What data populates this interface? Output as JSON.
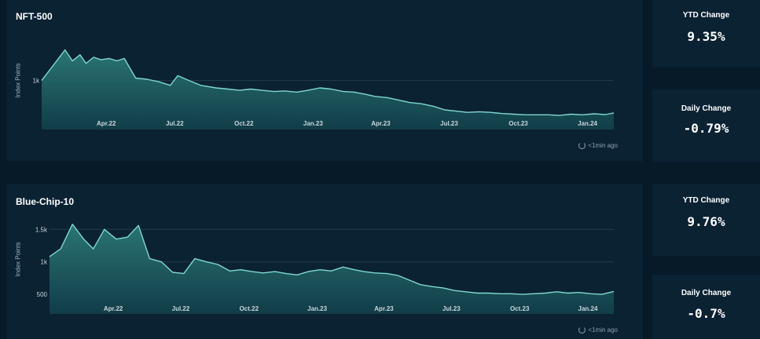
{
  "panels": [
    {
      "title": "NFT-500",
      "updated": "<1min ago",
      "ytd": {
        "label": "YTD Change",
        "value": "9.35%"
      },
      "daily": {
        "label": "Daily Change",
        "value": "-0.79%"
      }
    },
    {
      "title": "Blue-Chip-10",
      "updated": "<1min ago",
      "ytd": {
        "label": "YTD Change",
        "value": "9.76%"
      },
      "daily": {
        "label": "Daily Change",
        "value": "-0.7%"
      }
    }
  ],
  "colors": {
    "line": "#7fd8cf",
    "fill_top": "#2c7a78",
    "fill_bottom": "#12404a",
    "grid": "#1f3d50",
    "tick": "#c9d6df"
  },
  "chart_data": [
    {
      "type": "area",
      "title": "NFT-500",
      "ylabel": "Index Points",
      "y_ticks": [
        {
          "value": 1000,
          "label": "1k"
        }
      ],
      "ylim": [
        600,
        1350
      ],
      "x_ticks": [
        {
          "date": "2022-04-01",
          "label": "Apr.22"
        },
        {
          "date": "2022-07-01",
          "label": "Jul.22"
        },
        {
          "date": "2022-10-01",
          "label": "Oct.22"
        },
        {
          "date": "2023-01-01",
          "label": "Jan.23"
        },
        {
          "date": "2023-04-01",
          "label": "Apr.23"
        },
        {
          "date": "2023-07-01",
          "label": "Jul.23"
        },
        {
          "date": "2023-10-01",
          "label": "Oct.23"
        },
        {
          "date": "2024-01-01",
          "label": "Jan.24"
        }
      ],
      "xlim": [
        "2022-01-05",
        "2024-02-05"
      ],
      "x": [
        "2022-01-05",
        "2022-01-20",
        "2022-02-05",
        "2022-02-15",
        "2022-02-25",
        "2022-03-05",
        "2022-03-15",
        "2022-03-25",
        "2022-04-05",
        "2022-04-15",
        "2022-04-25",
        "2022-05-10",
        "2022-05-25",
        "2022-06-10",
        "2022-06-25",
        "2022-07-05",
        "2022-07-20",
        "2022-08-05",
        "2022-08-25",
        "2022-09-10",
        "2022-09-25",
        "2022-10-10",
        "2022-10-25",
        "2022-11-10",
        "2022-11-25",
        "2022-12-10",
        "2022-12-25",
        "2023-01-10",
        "2023-01-25",
        "2023-02-10",
        "2023-02-25",
        "2023-03-10",
        "2023-03-25",
        "2023-04-10",
        "2023-04-25",
        "2023-05-10",
        "2023-05-25",
        "2023-06-10",
        "2023-06-25",
        "2023-07-10",
        "2023-07-25",
        "2023-08-10",
        "2023-08-25",
        "2023-09-10",
        "2023-09-25",
        "2023-10-10",
        "2023-10-25",
        "2023-11-10",
        "2023-11-25",
        "2023-12-10",
        "2023-12-25",
        "2024-01-10",
        "2024-01-25",
        "2024-02-05"
      ],
      "values": [
        1000,
        1120,
        1250,
        1160,
        1210,
        1140,
        1190,
        1170,
        1180,
        1160,
        1180,
        1020,
        1010,
        990,
        960,
        1040,
        1000,
        960,
        940,
        930,
        920,
        930,
        920,
        910,
        915,
        905,
        920,
        940,
        930,
        910,
        905,
        890,
        870,
        860,
        840,
        820,
        810,
        790,
        760,
        750,
        740,
        745,
        740,
        730,
        725,
        720,
        720,
        720,
        715,
        725,
        720,
        728,
        722,
        735
      ]
    },
    {
      "type": "area",
      "title": "Blue-Chip-10",
      "ylabel": "Index Points",
      "y_ticks": [
        {
          "value": 1500,
          "label": "1.5k"
        },
        {
          "value": 1000,
          "label": "1k"
        },
        {
          "value": 500,
          "label": "500"
        }
      ],
      "ylim": [
        200,
        1600
      ],
      "x_ticks": [
        {
          "date": "2022-04-01",
          "label": "Apr.22"
        },
        {
          "date": "2022-07-01",
          "label": "Jul.22"
        },
        {
          "date": "2022-10-01",
          "label": "Oct.22"
        },
        {
          "date": "2023-01-01",
          "label": "Jan.23"
        },
        {
          "date": "2023-04-01",
          "label": "Apr.23"
        },
        {
          "date": "2023-07-01",
          "label": "Jul.23"
        },
        {
          "date": "2023-10-01",
          "label": "Oct.23"
        },
        {
          "date": "2024-01-01",
          "label": "Jan.24"
        }
      ],
      "xlim": [
        "2022-01-05",
        "2024-02-05"
      ],
      "x": [
        "2022-01-05",
        "2022-01-20",
        "2022-02-05",
        "2022-02-20",
        "2022-03-05",
        "2022-03-20",
        "2022-04-05",
        "2022-04-20",
        "2022-05-05",
        "2022-05-20",
        "2022-06-05",
        "2022-06-20",
        "2022-07-05",
        "2022-07-20",
        "2022-08-05",
        "2022-08-20",
        "2022-09-05",
        "2022-09-20",
        "2022-10-05",
        "2022-10-20",
        "2022-11-05",
        "2022-11-20",
        "2022-12-05",
        "2022-12-20",
        "2023-01-05",
        "2023-01-20",
        "2023-02-05",
        "2023-02-20",
        "2023-03-05",
        "2023-03-20",
        "2023-04-05",
        "2023-04-20",
        "2023-05-05",
        "2023-05-20",
        "2023-06-05",
        "2023-06-20",
        "2023-07-05",
        "2023-07-20",
        "2023-08-05",
        "2023-08-20",
        "2023-09-05",
        "2023-09-20",
        "2023-10-05",
        "2023-10-20",
        "2023-11-05",
        "2023-11-20",
        "2023-12-05",
        "2023-12-20",
        "2024-01-05",
        "2024-01-20",
        "2024-02-05"
      ],
      "values": [
        1080,
        1200,
        1580,
        1350,
        1200,
        1500,
        1350,
        1380,
        1560,
        1050,
        1000,
        840,
        820,
        1050,
        1000,
        960,
        860,
        880,
        850,
        830,
        850,
        820,
        800,
        850,
        880,
        860,
        920,
        880,
        850,
        830,
        820,
        790,
        720,
        650,
        620,
        600,
        560,
        540,
        520,
        520,
        510,
        510,
        500,
        510,
        520,
        540,
        520,
        530,
        510,
        500,
        545
      ]
    }
  ]
}
